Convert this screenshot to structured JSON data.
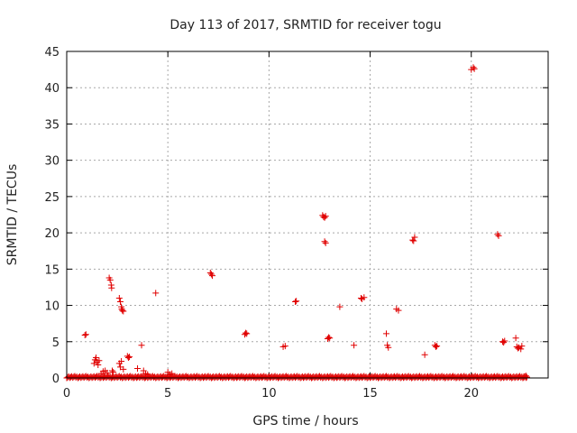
{
  "chart_data": {
    "type": "scatter",
    "title": "Day 113 of 2017, SRMTID for receiver togu",
    "xlabel": "GPS time / hours",
    "ylabel": "SRMTID / TECUs",
    "xlim": [
      0,
      23.8
    ],
    "ylim": [
      0,
      45
    ],
    "xticks": [
      0,
      5,
      10,
      15,
      20
    ],
    "yticks": [
      0,
      5,
      10,
      15,
      20,
      25,
      30,
      35,
      40,
      45
    ],
    "grid": true,
    "marker": "plus",
    "color": "#e00000",
    "points": [
      [
        0.9,
        5.9
      ],
      [
        0.95,
        6.0
      ],
      [
        1.35,
        2.0
      ],
      [
        1.4,
        2.5
      ],
      [
        1.45,
        2.8
      ],
      [
        1.5,
        2.2
      ],
      [
        1.55,
        1.8
      ],
      [
        1.6,
        2.4
      ],
      [
        1.7,
        0.6
      ],
      [
        1.8,
        0.9
      ],
      [
        1.9,
        1.0
      ],
      [
        2.0,
        0.7
      ],
      [
        2.1,
        13.8
      ],
      [
        2.15,
        13.5
      ],
      [
        2.2,
        12.8
      ],
      [
        2.22,
        12.4
      ],
      [
        2.25,
        1.0
      ],
      [
        2.3,
        0.8
      ],
      [
        2.6,
        11.0
      ],
      [
        2.65,
        10.5
      ],
      [
        2.7,
        9.8
      ],
      [
        2.72,
        9.5
      ],
      [
        2.75,
        9.3
      ],
      [
        2.8,
        9.2
      ],
      [
        2.6,
        2.0
      ],
      [
        2.65,
        1.5
      ],
      [
        2.7,
        2.3
      ],
      [
        2.8,
        1.2
      ],
      [
        3.0,
        3.0
      ],
      [
        3.05,
        2.8
      ],
      [
        3.1,
        2.9
      ],
      [
        3.5,
        1.3
      ],
      [
        3.7,
        4.5
      ],
      [
        3.8,
        1.0
      ],
      [
        3.9,
        0.6
      ],
      [
        4.0,
        0.5
      ],
      [
        4.4,
        11.7
      ],
      [
        5.0,
        0.8
      ],
      [
        5.1,
        0.5
      ],
      [
        5.2,
        0.6
      ],
      [
        7.1,
        14.5
      ],
      [
        7.15,
        14.3
      ],
      [
        7.2,
        14.1
      ],
      [
        8.8,
        6.0
      ],
      [
        8.85,
        6.2
      ],
      [
        8.9,
        6.1
      ],
      [
        10.7,
        4.3
      ],
      [
        10.8,
        4.4
      ],
      [
        11.3,
        10.5
      ],
      [
        11.35,
        10.6
      ],
      [
        12.65,
        22.4
      ],
      [
        12.7,
        22.2
      ],
      [
        12.75,
        22.1
      ],
      [
        12.8,
        22.3
      ],
      [
        12.75,
        18.8
      ],
      [
        12.8,
        18.6
      ],
      [
        12.9,
        5.4
      ],
      [
        12.95,
        5.6
      ],
      [
        13.0,
        5.5
      ],
      [
        13.5,
        9.8
      ],
      [
        14.2,
        4.5
      ],
      [
        14.55,
        11.0
      ],
      [
        14.6,
        10.9
      ],
      [
        14.7,
        11.1
      ],
      [
        15.8,
        6.1
      ],
      [
        15.85,
        4.5
      ],
      [
        15.9,
        4.2
      ],
      [
        16.3,
        9.5
      ],
      [
        16.4,
        9.3
      ],
      [
        17.1,
        19.0
      ],
      [
        17.15,
        18.9
      ],
      [
        17.2,
        19.4
      ],
      [
        17.7,
        3.2
      ],
      [
        18.2,
        4.5
      ],
      [
        18.25,
        4.3
      ],
      [
        18.3,
        4.4
      ],
      [
        20.0,
        42.5
      ],
      [
        20.1,
        42.8
      ],
      [
        20.15,
        42.6
      ],
      [
        21.3,
        19.8
      ],
      [
        21.35,
        19.6
      ],
      [
        21.55,
        5.0
      ],
      [
        21.6,
        4.9
      ],
      [
        21.65,
        5.1
      ],
      [
        22.2,
        5.5
      ],
      [
        22.25,
        4.3
      ],
      [
        22.3,
        4.1
      ],
      [
        22.35,
        4.2
      ],
      [
        22.45,
        4.0
      ],
      [
        22.5,
        4.4
      ],
      [
        22.6,
        0.2
      ],
      [
        22.7,
        0.3
      ]
    ],
    "baseline": {
      "x_start": 0.0,
      "x_end": 22.8,
      "x_step": 0.05,
      "y_min": 0.0,
      "y_max": 0.5
    }
  }
}
